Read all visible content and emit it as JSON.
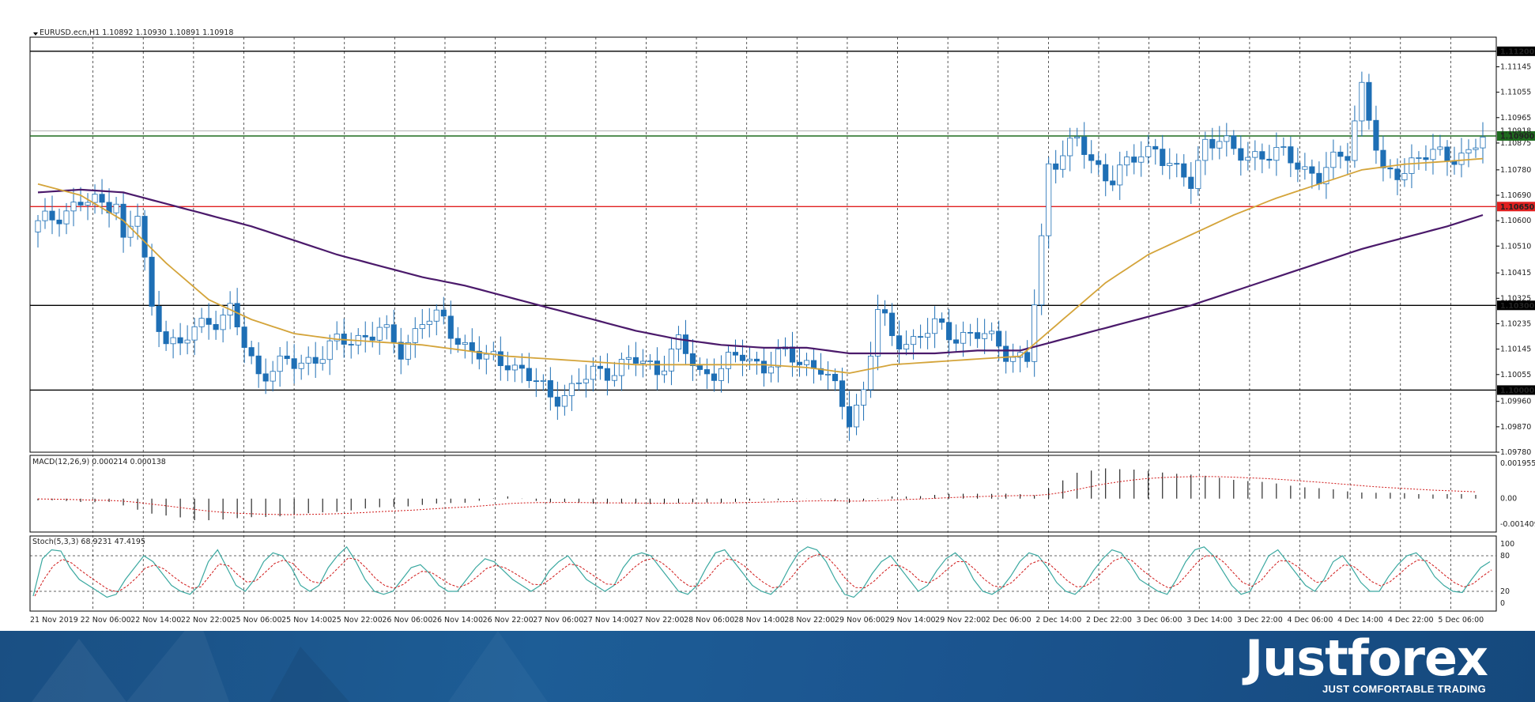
{
  "chart_data": [
    {
      "type": "candlestick",
      "title": "EURUSD.ecn,H1  1.10892 1.10930 1.10891 1.10918",
      "ylim": [
        1.0978,
        1.1125
      ],
      "price_ticks": [
        "1.11145",
        "1.11055",
        "1.10965",
        "1.10875",
        "1.10780",
        "1.10690",
        "1.10600",
        "1.10510",
        "1.10415",
        "1.10325",
        "1.10235",
        "1.10145",
        "1.10055",
        "1.09960",
        "1.09870",
        "1.09780"
      ],
      "levels": [
        {
          "value": 1.112,
          "label": "1.11200",
          "color": "#000000"
        },
        {
          "value": 1.109,
          "label": "1.10900",
          "color": "#1f6b1f"
        },
        {
          "value": 1.1065,
          "label": "1.10650",
          "color": "#e02020"
        },
        {
          "value": 1.103,
          "label": "1.10300",
          "color": "#000000"
        },
        {
          "value": 1.1,
          "label": "1.10000",
          "color": "#000000"
        }
      ],
      "current_price_label": "1.10918",
      "x_labels": [
        "21 Nov 2019",
        "22 Nov 06:00",
        "22 Nov 14:00",
        "22 Nov 22:00",
        "25 Nov 06:00",
        "25 Nov 14:00",
        "25 Nov 22:00",
        "26 Nov 06:00",
        "26 Nov 14:00",
        "26 Nov 22:00",
        "27 Nov 06:00",
        "27 Nov 14:00",
        "27 Nov 22:00",
        "28 Nov 06:00",
        "28 Nov 14:00",
        "28 Nov 22:00",
        "29 Nov 06:00",
        "29 Nov 14:00",
        "29 Nov 22:00",
        "2 Dec 06:00",
        "2 Dec 14:00",
        "2 Dec 22:00",
        "3 Dec 06:00",
        "3 Dec 14:00",
        "3 Dec 22:00",
        "4 Dec 06:00",
        "4 Dec 14:00",
        "4 Dec 22:00",
        "5 Dec 06:00"
      ],
      "close_path": [
        [
          0,
          1.1058
        ],
        [
          3,
          1.1063
        ],
        [
          6,
          1.1066
        ],
        [
          9,
          1.1066
        ],
        [
          11,
          1.1068
        ],
        [
          12,
          1.1052
        ],
        [
          14,
          1.1062
        ],
        [
          16,
          1.1028
        ],
        [
          18,
          1.102
        ],
        [
          20,
          1.1014
        ],
        [
          22,
          1.1022
        ],
        [
          24,
          1.1025
        ],
        [
          27,
          1.1027
        ],
        [
          29,
          1.1016
        ],
        [
          31,
          1.1006
        ],
        [
          33,
          1.1008
        ],
        [
          36,
          1.1009
        ],
        [
          39,
          1.1012
        ],
        [
          42,
          1.1016
        ],
        [
          45,
          1.1019
        ],
        [
          48,
          1.1021
        ],
        [
          51,
          1.1014
        ],
        [
          54,
          1.1025
        ],
        [
          57,
          1.1024
        ],
        [
          60,
          1.1016
        ],
        [
          63,
          1.101
        ],
        [
          66,
          1.1011
        ],
        [
          69,
          1.1004
        ],
        [
          72,
          1.0998
        ],
        [
          75,
          1.1
        ],
        [
          78,
          1.1006
        ],
        [
          81,
          1.1008
        ],
        [
          84,
          1.101
        ],
        [
          87,
          1.1008
        ],
        [
          90,
          1.1016
        ],
        [
          93,
          1.1006
        ],
        [
          96,
          1.1008
        ],
        [
          99,
          1.1012
        ],
        [
          102,
          1.1009
        ],
        [
          105,
          1.1012
        ],
        [
          108,
          1.101
        ],
        [
          110,
          1.1008
        ],
        [
          112,
          1.0999
        ],
        [
          114,
          1.099
        ],
        [
          116,
          1.1
        ],
        [
          118,
          1.1028
        ],
        [
          120,
          1.1018
        ],
        [
          123,
          1.1018
        ],
        [
          126,
          1.1022
        ],
        [
          129,
          1.102
        ],
        [
          132,
          1.1019
        ],
        [
          135,
          1.1017
        ],
        [
          137,
          1.1012
        ],
        [
          139,
          1.101
        ],
        [
          140,
          1.103
        ],
        [
          141,
          1.1052
        ],
        [
          142,
          1.108
        ],
        [
          144,
          1.1085
        ],
        [
          146,
          1.1088
        ],
        [
          148,
          1.108
        ],
        [
          151,
          1.1076
        ],
        [
          154,
          1.1081
        ],
        [
          157,
          1.1087
        ],
        [
          160,
          1.1076
        ],
        [
          162,
          1.1073
        ],
        [
          164,
          1.1089
        ],
        [
          166,
          1.1089
        ],
        [
          168,
          1.1083
        ],
        [
          171,
          1.1084
        ],
        [
          174,
          1.1083
        ],
        [
          177,
          1.1081
        ],
        [
          180,
          1.1075
        ],
        [
          182,
          1.108
        ],
        [
          184,
          1.1085
        ],
        [
          186,
          1.1108
        ],
        [
          188,
          1.1085
        ],
        [
          189,
          1.1075
        ],
        [
          191,
          1.1078
        ],
        [
          193,
          1.1081
        ],
        [
          196,
          1.1083
        ],
        [
          199,
          1.1084
        ],
        [
          201,
          1.1083
        ],
        [
          203,
          1.1089
        ]
      ],
      "ma_fast_path": [
        [
          0,
          1.1073
        ],
        [
          6,
          1.1069
        ],
        [
          12,
          1.106
        ],
        [
          18,
          1.1045
        ],
        [
          24,
          1.1032
        ],
        [
          30,
          1.1025
        ],
        [
          36,
          1.102
        ],
        [
          42,
          1.1018
        ],
        [
          48,
          1.1017
        ],
        [
          54,
          1.1016
        ],
        [
          60,
          1.1014
        ],
        [
          66,
          1.1012
        ],
        [
          72,
          1.1011
        ],
        [
          78,
          1.101
        ],
        [
          84,
          1.1009
        ],
        [
          90,
          1.1009
        ],
        [
          96,
          1.1009
        ],
        [
          102,
          1.1009
        ],
        [
          108,
          1.1008
        ],
        [
          114,
          1.1006
        ],
        [
          120,
          1.1009
        ],
        [
          126,
          1.101
        ],
        [
          132,
          1.1011
        ],
        [
          138,
          1.1012
        ],
        [
          144,
          1.1025
        ],
        [
          150,
          1.1038
        ],
        [
          156,
          1.1048
        ],
        [
          162,
          1.1055
        ],
        [
          168,
          1.1062
        ],
        [
          174,
          1.1068
        ],
        [
          180,
          1.1073
        ],
        [
          186,
          1.1078
        ],
        [
          192,
          1.108
        ],
        [
          198,
          1.1081
        ],
        [
          203,
          1.1082
        ]
      ],
      "ma_slow_path": [
        [
          0,
          1.107
        ],
        [
          6,
          1.1071
        ],
        [
          12,
          1.107
        ],
        [
          18,
          1.1066
        ],
        [
          24,
          1.1062
        ],
        [
          30,
          1.1058
        ],
        [
          36,
          1.1053
        ],
        [
          42,
          1.1048
        ],
        [
          48,
          1.1044
        ],
        [
          54,
          1.104
        ],
        [
          60,
          1.1037
        ],
        [
          66,
          1.1033
        ],
        [
          72,
          1.1029
        ],
        [
          78,
          1.1025
        ],
        [
          84,
          1.1021
        ],
        [
          90,
          1.1018
        ],
        [
          96,
          1.1016
        ],
        [
          102,
          1.1015
        ],
        [
          108,
          1.1015
        ],
        [
          114,
          1.1013
        ],
        [
          120,
          1.1013
        ],
        [
          126,
          1.1013
        ],
        [
          132,
          1.1014
        ],
        [
          138,
          1.1014
        ],
        [
          144,
          1.1018
        ],
        [
          150,
          1.1022
        ],
        [
          156,
          1.1026
        ],
        [
          162,
          1.103
        ],
        [
          168,
          1.1035
        ],
        [
          174,
          1.104
        ],
        [
          180,
          1.1045
        ],
        [
          186,
          1.105
        ],
        [
          192,
          1.1054
        ],
        [
          198,
          1.1058
        ],
        [
          203,
          1.1062
        ]
      ]
    },
    {
      "type": "histogram",
      "title": "MACD(12,26,9) 0.000214 0.000138",
      "ylim": [
        -0.001409,
        0.001955
      ],
      "y_ticks": [
        "0.001955",
        "0.00",
        "-0.001409"
      ],
      "macd_path": [
        [
          0,
          -0.0001
        ],
        [
          10,
          -0.0002
        ],
        [
          16,
          -0.0008
        ],
        [
          22,
          -0.0012
        ],
        [
          28,
          -0.0011
        ],
        [
          36,
          -0.0009
        ],
        [
          48,
          -0.0005
        ],
        [
          60,
          -0.0002
        ],
        [
          66,
          0.0001
        ],
        [
          72,
          -0.0002
        ],
        [
          84,
          -0.0003
        ],
        [
          96,
          -0.0002
        ],
        [
          108,
          0.0
        ],
        [
          114,
          -0.0002
        ],
        [
          120,
          0.0001
        ],
        [
          132,
          0.0003
        ],
        [
          140,
          0.0002
        ],
        [
          146,
          0.0014
        ],
        [
          150,
          0.0017
        ],
        [
          160,
          0.0014
        ],
        [
          172,
          0.0009
        ],
        [
          184,
          0.0004
        ],
        [
          190,
          0.0003
        ],
        [
          203,
          0.0002
        ]
      ]
    },
    {
      "type": "line",
      "title": "Stoch(5,3,3) 68.9231 47.4195",
      "ylim": [
        0,
        100
      ],
      "y_ticks": [
        "100",
        "80",
        "20",
        "0"
      ],
      "stoch_points": [
        12,
        75,
        90,
        88,
        60,
        40,
        30,
        20,
        10,
        15,
        40,
        60,
        80,
        70,
        50,
        30,
        20,
        15,
        30,
        70,
        90,
        60,
        30,
        20,
        40,
        70,
        85,
        80,
        60,
        30,
        20,
        30,
        60,
        80,
        95,
        70,
        40,
        20,
        15,
        20,
        40,
        60,
        65,
        50,
        30,
        20,
        20,
        40,
        60,
        75,
        70,
        55,
        40,
        30,
        20,
        30,
        55,
        70,
        80,
        60,
        40,
        30,
        20,
        30,
        60,
        80,
        85,
        80,
        60,
        40,
        20,
        15,
        30,
        60,
        85,
        90,
        70,
        50,
        30,
        20,
        15,
        30,
        60,
        85,
        95,
        90,
        70,
        40,
        15,
        10,
        25,
        50,
        70,
        80,
        60,
        40,
        20,
        30,
        55,
        75,
        85,
        70,
        40,
        20,
        15,
        25,
        45,
        70,
        85,
        80,
        60,
        35,
        20,
        15,
        30,
        55,
        75,
        90,
        85,
        65,
        40,
        30,
        20,
        15,
        40,
        70,
        90,
        95,
        80,
        55,
        30,
        15,
        20,
        50,
        80,
        90,
        70,
        50,
        30,
        20,
        40,
        70,
        80,
        60,
        35,
        20,
        20,
        45,
        65,
        80,
        85,
        70,
        45,
        30,
        20,
        18,
        40,
        60,
        70
      ]
    }
  ],
  "brand": {
    "logo_text": "Justforex",
    "tagline": "JUST COMFORTABLE TRADING"
  },
  "colors": {
    "bull_candle_fill": "#ffffff",
    "bear_candle_fill": "#1e6fb5",
    "candle_outline": "#1e6fb5",
    "ma_fast": "#d4a43a",
    "ma_slow": "#4b1a6b",
    "stoch_main": "#3aa8a0",
    "stoch_signal": "#d01818",
    "macd_bars": "#000000",
    "macd_signal": "#d01818"
  }
}
